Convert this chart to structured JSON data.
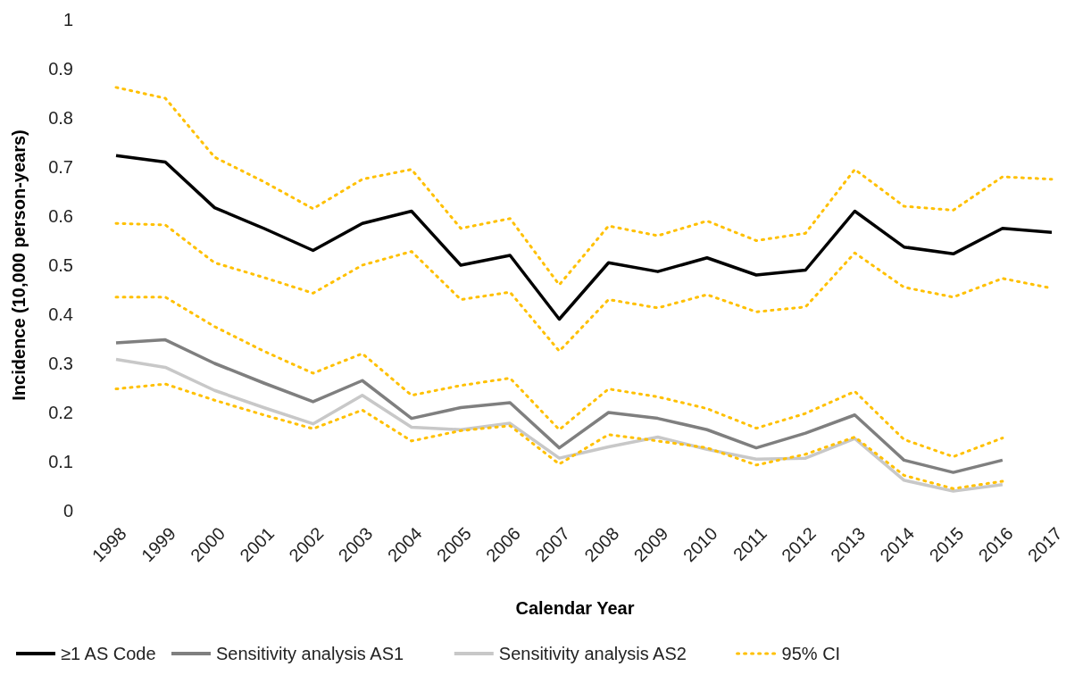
{
  "chart_data": {
    "type": "line",
    "xlabel": "Calendar Year",
    "ylabel": "Incidence (10,000 person-years)",
    "categories": [
      "1998",
      "1999",
      "2000",
      "2001",
      "2002",
      "2003",
      "2004",
      "2005",
      "2006",
      "2007",
      "2008",
      "2009",
      "2010",
      "2011",
      "2012",
      "2013",
      "2014",
      "2015",
      "2016",
      "2017"
    ],
    "ylim": [
      0,
      1
    ],
    "yticks": [
      0,
      0.1,
      0.2,
      0.3,
      0.4,
      0.5,
      0.6,
      0.7,
      0.8,
      0.9,
      1
    ],
    "grid": false,
    "legend": "bottom",
    "marker": "none",
    "series": [
      {
        "name": "≥1 AS Code",
        "color": "#000000",
        "line_style": "solid",
        "values": [
          0.723,
          0.71,
          0.617,
          0.575,
          0.53,
          0.585,
          0.61,
          0.5,
          0.52,
          0.39,
          0.505,
          0.487,
          0.515,
          0.48,
          0.49,
          0.61,
          0.537,
          0.523,
          0.575,
          0.567
        ]
      },
      {
        "name": "Sensitivity analysis AS1",
        "color": "#7f7f7f",
        "line_style": "solid",
        "values": [
          0.342,
          0.348,
          0.3,
          0.26,
          0.222,
          0.265,
          0.188,
          0.21,
          0.22,
          0.128,
          0.2,
          0.188,
          0.165,
          0.128,
          0.158,
          0.195,
          0.103,
          0.078,
          0.103,
          null
        ]
      },
      {
        "name": "Sensitivity analysis AS2",
        "color": "#c8c8c8",
        "line_style": "solid",
        "values": [
          0.308,
          0.292,
          0.245,
          0.21,
          0.177,
          0.235,
          0.17,
          0.165,
          0.178,
          0.107,
          0.13,
          0.15,
          0.125,
          0.105,
          0.107,
          0.147,
          0.062,
          0.04,
          0.053,
          null
        ]
      },
      {
        "name": "95% CI",
        "color": "#ffc000",
        "line_style": "dotted",
        "values": [
          0.862,
          0.84,
          0.72,
          0.67,
          0.615,
          0.675,
          0.695,
          0.575,
          0.595,
          0.46,
          0.58,
          0.56,
          0.59,
          0.55,
          0.565,
          0.695,
          0.62,
          0.612,
          0.68,
          0.675
        ]
      },
      {
        "color": "#ffc000",
        "line_style": "dotted",
        "values": [
          0.585,
          0.582,
          0.505,
          0.475,
          0.443,
          0.5,
          0.528,
          0.43,
          0.445,
          0.325,
          0.43,
          0.413,
          0.44,
          0.405,
          0.415,
          0.525,
          0.455,
          0.435,
          0.473,
          0.453
        ]
      },
      {
        "color": "#ffc000",
        "line_style": "dotted",
        "values": [
          0.435,
          0.435,
          0.375,
          0.325,
          0.28,
          0.32,
          0.235,
          0.255,
          0.27,
          0.165,
          0.248,
          0.232,
          0.208,
          0.168,
          0.198,
          0.243,
          0.145,
          0.11,
          0.148,
          null
        ]
      },
      {
        "color": "#ffc000",
        "line_style": "dotted",
        "values": [
          0.248,
          0.258,
          0.225,
          0.195,
          0.167,
          0.205,
          0.142,
          0.163,
          0.173,
          0.095,
          0.155,
          0.142,
          0.128,
          0.093,
          0.115,
          0.15,
          0.072,
          0.045,
          0.06,
          null
        ]
      }
    ]
  }
}
